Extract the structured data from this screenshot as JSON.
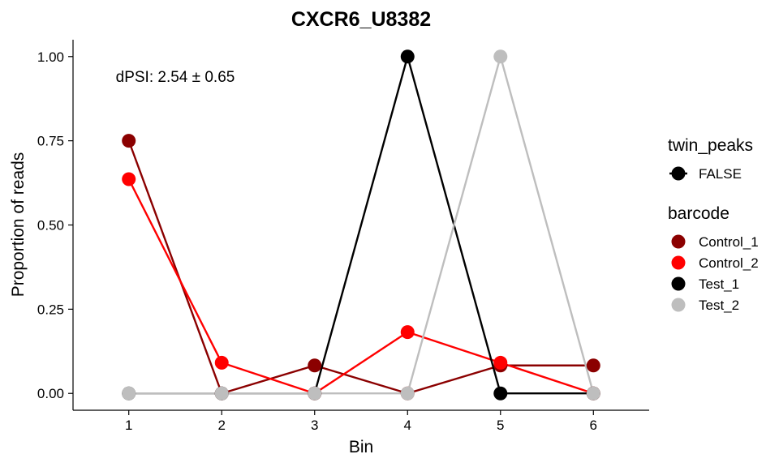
{
  "chart_data": {
    "type": "line",
    "title": "CXCR6_U8382",
    "xlabel": "Bin",
    "ylabel": "Proportion of reads",
    "x": [
      1,
      2,
      3,
      4,
      5,
      6
    ],
    "x_tick_labels": [
      "1",
      "2",
      "3",
      "4",
      "5",
      "6"
    ],
    "xlim": [
      0.4,
      6.6
    ],
    "ylim": [
      -0.05,
      1.05
    ],
    "y_ticks": [
      0,
      0.25,
      0.5,
      0.75,
      1.0
    ],
    "y_tick_labels": [
      "0.00",
      "0.25",
      "0.50",
      "0.75",
      "1.00"
    ],
    "annotation": "dPSI: 2.54 ± 0.65",
    "grid": false,
    "legend_position": "right",
    "series": [
      {
        "name": "Control_1",
        "color": "#8B0000",
        "values": [
          0.75,
          0.0,
          0.083,
          0.0,
          0.083,
          0.083
        ]
      },
      {
        "name": "Control_2",
        "color": "#FF0000",
        "values": [
          0.636,
          0.091,
          0.0,
          0.182,
          0.091,
          0.0
        ]
      },
      {
        "name": "Test_1",
        "color": "#000000",
        "values": [
          0.0,
          0.0,
          0.0,
          1.0,
          0.0,
          0.0
        ]
      },
      {
        "name": "Test_2",
        "color": "#BEBEBE",
        "values": [
          0.0,
          0.0,
          0.0,
          0.0,
          1.0,
          0.0
        ]
      }
    ],
    "legends": [
      {
        "title": "twin_peaks",
        "entries": [
          {
            "label": "FALSE",
            "color": "#000000"
          }
        ]
      },
      {
        "title": "barcode",
        "entries": [
          {
            "label": "Control_1",
            "color": "#8B0000"
          },
          {
            "label": "Control_2",
            "color": "#FF0000"
          },
          {
            "label": "Test_1",
            "color": "#000000"
          },
          {
            "label": "Test_2",
            "color": "#BEBEBE"
          }
        ]
      }
    ]
  }
}
